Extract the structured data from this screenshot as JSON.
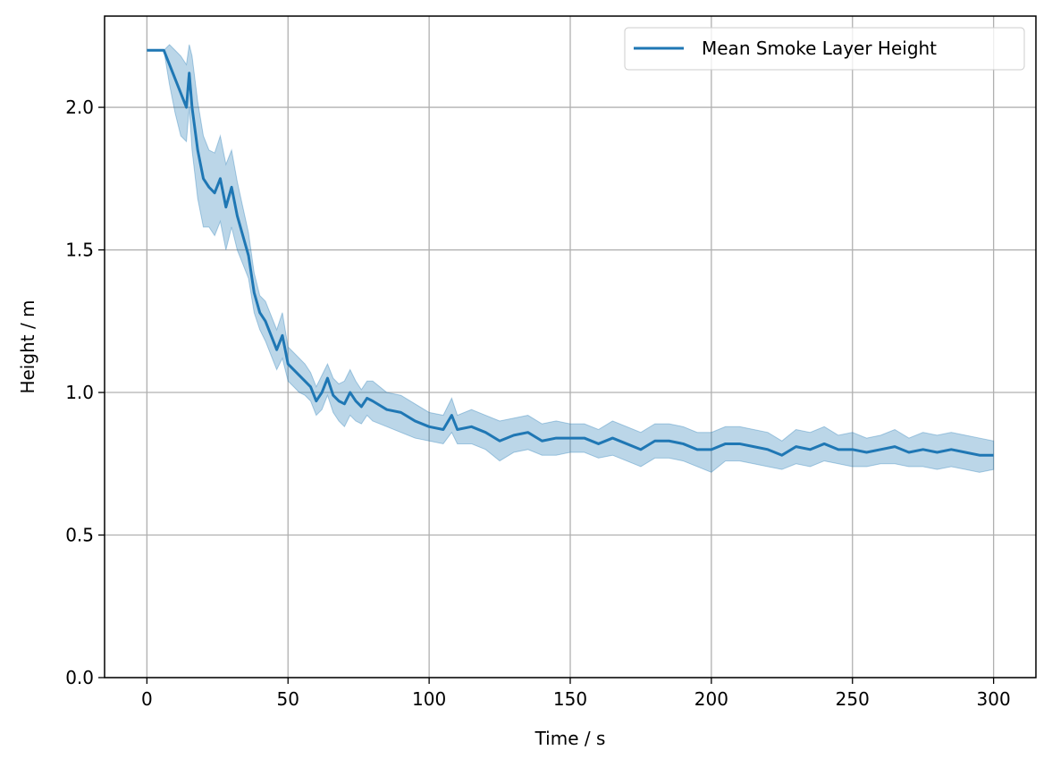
{
  "chart_data": {
    "type": "line",
    "title": "",
    "xlabel": "Time / s",
    "ylabel": "Height / m",
    "xlim": [
      -15,
      315
    ],
    "ylim": [
      0.0,
      2.32
    ],
    "xticks": [
      0,
      50,
      100,
      150,
      200,
      250,
      300
    ],
    "xtick_labels": [
      "0",
      "50",
      "100",
      "150",
      "200",
      "250",
      "300"
    ],
    "yticks": [
      0.0,
      0.5,
      1.0,
      1.5,
      2.0
    ],
    "ytick_labels": [
      "0.0",
      "0.5",
      "1.0",
      "1.5",
      "2.0"
    ],
    "grid": true,
    "legend_position": "top-right",
    "colors": {
      "line": "#1f77b4",
      "band_fill": "#1f77b4",
      "grid": "#b0b0b0"
    },
    "series": [
      {
        "name": "Mean Smoke Layer Height",
        "x": [
          0,
          2,
          4,
          6,
          8,
          10,
          12,
          14,
          15,
          16,
          18,
          20,
          22,
          24,
          26,
          28,
          30,
          32,
          34,
          36,
          38,
          40,
          42,
          44,
          46,
          48,
          50,
          52,
          54,
          56,
          58,
          60,
          62,
          64,
          66,
          68,
          70,
          72,
          74,
          76,
          78,
          80,
          85,
          90,
          95,
          100,
          105,
          108,
          110,
          115,
          120,
          125,
          130,
          135,
          140,
          145,
          150,
          155,
          160,
          165,
          170,
          175,
          180,
          185,
          190,
          195,
          200,
          205,
          210,
          215,
          220,
          225,
          230,
          235,
          240,
          245,
          250,
          255,
          260,
          265,
          270,
          275,
          280,
          285,
          290,
          295,
          300
        ],
        "y": [
          2.2,
          2.2,
          2.2,
          2.2,
          2.15,
          2.1,
          2.05,
          2.0,
          2.12,
          2.0,
          1.85,
          1.75,
          1.72,
          1.7,
          1.75,
          1.65,
          1.72,
          1.62,
          1.55,
          1.48,
          1.35,
          1.28,
          1.25,
          1.2,
          1.15,
          1.2,
          1.1,
          1.08,
          1.06,
          1.04,
          1.02,
          0.97,
          1.0,
          1.05,
          0.99,
          0.97,
          0.96,
          1.0,
          0.97,
          0.95,
          0.98,
          0.97,
          0.94,
          0.93,
          0.9,
          0.88,
          0.87,
          0.92,
          0.87,
          0.88,
          0.86,
          0.83,
          0.85,
          0.86,
          0.83,
          0.84,
          0.84,
          0.84,
          0.82,
          0.84,
          0.82,
          0.8,
          0.83,
          0.83,
          0.82,
          0.8,
          0.8,
          0.82,
          0.82,
          0.81,
          0.8,
          0.78,
          0.81,
          0.8,
          0.82,
          0.8,
          0.8,
          0.79,
          0.8,
          0.81,
          0.79,
          0.8,
          0.79,
          0.8,
          0.79,
          0.78,
          0.78
        ],
        "lower": [
          2.2,
          2.2,
          2.2,
          2.2,
          2.08,
          1.98,
          1.9,
          1.88,
          2.0,
          1.85,
          1.68,
          1.58,
          1.58,
          1.55,
          1.6,
          1.5,
          1.58,
          1.5,
          1.45,
          1.4,
          1.28,
          1.22,
          1.18,
          1.13,
          1.08,
          1.12,
          1.04,
          1.02,
          1.0,
          0.99,
          0.97,
          0.92,
          0.94,
          0.99,
          0.93,
          0.9,
          0.88,
          0.92,
          0.9,
          0.89,
          0.92,
          0.9,
          0.88,
          0.86,
          0.84,
          0.83,
          0.82,
          0.86,
          0.82,
          0.82,
          0.8,
          0.76,
          0.79,
          0.8,
          0.78,
          0.78,
          0.79,
          0.79,
          0.77,
          0.78,
          0.76,
          0.74,
          0.77,
          0.77,
          0.76,
          0.74,
          0.72,
          0.76,
          0.76,
          0.75,
          0.74,
          0.73,
          0.75,
          0.74,
          0.76,
          0.75,
          0.74,
          0.74,
          0.75,
          0.75,
          0.74,
          0.74,
          0.73,
          0.74,
          0.73,
          0.72,
          0.73
        ],
        "upper": [
          2.2,
          2.2,
          2.2,
          2.2,
          2.22,
          2.2,
          2.18,
          2.15,
          2.22,
          2.18,
          2.02,
          1.9,
          1.85,
          1.84,
          1.9,
          1.8,
          1.85,
          1.74,
          1.65,
          1.56,
          1.42,
          1.34,
          1.32,
          1.27,
          1.22,
          1.28,
          1.16,
          1.14,
          1.12,
          1.1,
          1.07,
          1.02,
          1.06,
          1.1,
          1.05,
          1.03,
          1.04,
          1.08,
          1.04,
          1.01,
          1.04,
          1.04,
          1.0,
          0.99,
          0.96,
          0.93,
          0.92,
          0.98,
          0.92,
          0.94,
          0.92,
          0.9,
          0.91,
          0.92,
          0.89,
          0.9,
          0.89,
          0.89,
          0.87,
          0.9,
          0.88,
          0.86,
          0.89,
          0.89,
          0.88,
          0.86,
          0.86,
          0.88,
          0.88,
          0.87,
          0.86,
          0.83,
          0.87,
          0.86,
          0.88,
          0.85,
          0.86,
          0.84,
          0.85,
          0.87,
          0.84,
          0.86,
          0.85,
          0.86,
          0.85,
          0.84,
          0.83
        ]
      }
    ]
  }
}
